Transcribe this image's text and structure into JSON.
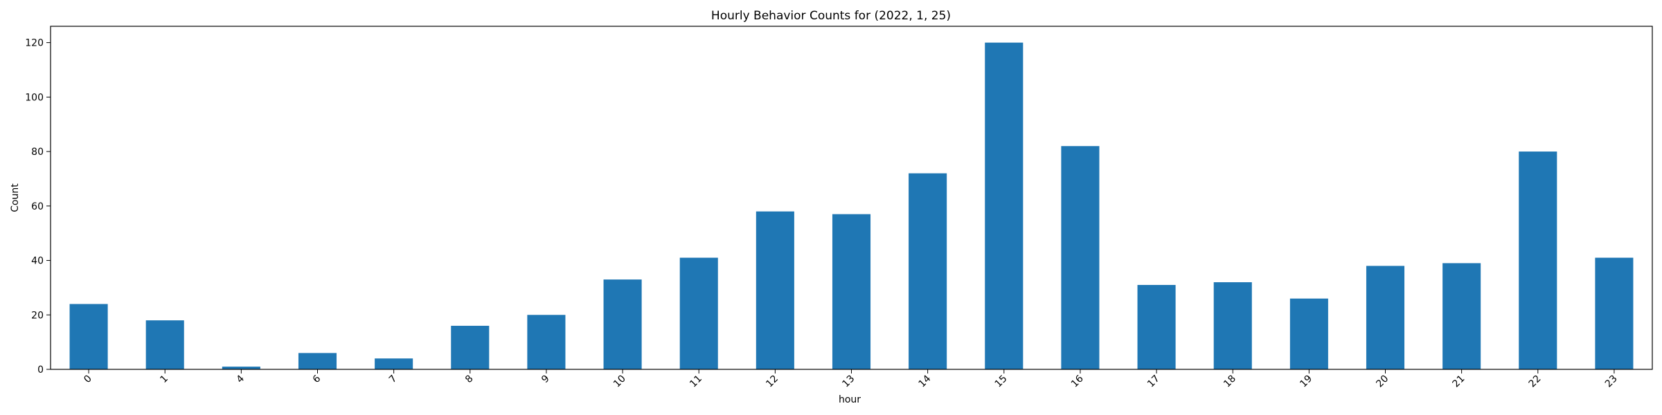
{
  "chart_data": {
    "type": "bar",
    "title": "Hourly Behavior Counts for (2022, 1, 25)",
    "xlabel": "hour",
    "ylabel": "Count",
    "categories": [
      "0",
      "1",
      "4",
      "6",
      "7",
      "8",
      "9",
      "10",
      "11",
      "12",
      "13",
      "14",
      "15",
      "16",
      "17",
      "18",
      "19",
      "20",
      "21",
      "22",
      "23"
    ],
    "values": [
      24,
      18,
      1,
      6,
      4,
      16,
      20,
      33,
      41,
      58,
      57,
      72,
      120,
      82,
      31,
      32,
      26,
      38,
      39,
      80,
      41
    ],
    "ylim": [
      0,
      126
    ],
    "yticks": [
      0,
      20,
      40,
      60,
      80,
      100,
      120
    ],
    "x_tick_rotation": 45,
    "grid": false,
    "legend": "none",
    "bar_color": "#1f77b4"
  }
}
